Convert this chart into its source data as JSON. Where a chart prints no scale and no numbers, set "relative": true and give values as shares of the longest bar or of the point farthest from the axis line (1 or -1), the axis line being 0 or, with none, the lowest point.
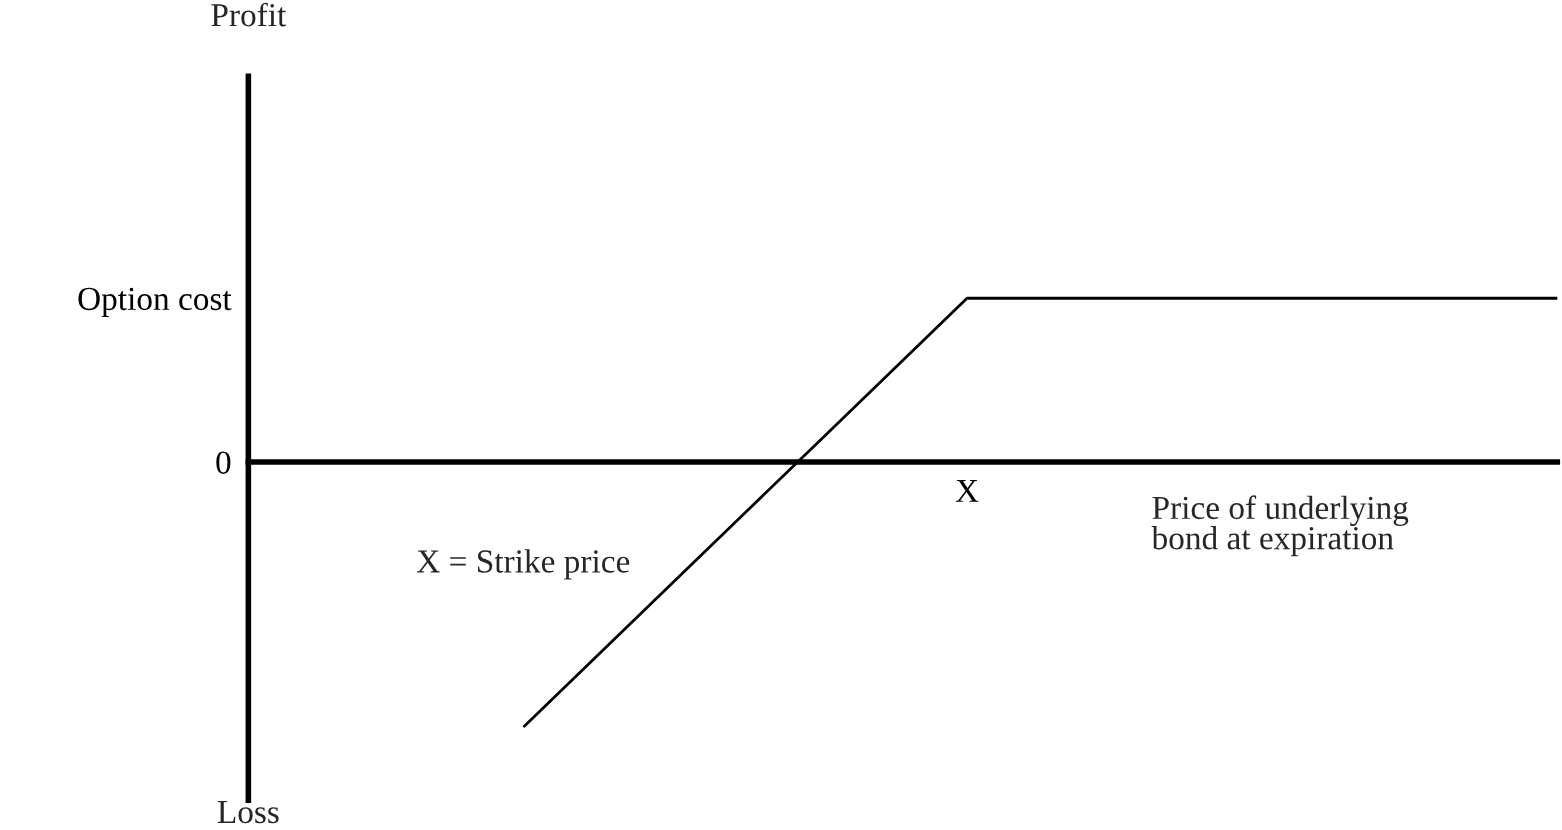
{
  "chart_data": {
    "type": "line",
    "relative": true,
    "categories": [
      null,
      null,
      null,
      null,
      null,
      null,
      null,
      null
    ],
    "series": [
      {
        "color": "#000000",
        "values": [
          -1,
          -0.46,
          0.08,
          0.62,
          0.62,
          0.62,
          0.62,
          0.62
        ]
      }
    ],
    "xlabel": "Price of underlying\nbond at expiration",
    "annotations": [
      "Profit",
      "Loss",
      "X = Strike price",
      "0",
      "Option cost",
      "X"
    ],
    "grid": false,
    "legend": false,
    "marker": "none",
    "line_style": "solid"
  }
}
